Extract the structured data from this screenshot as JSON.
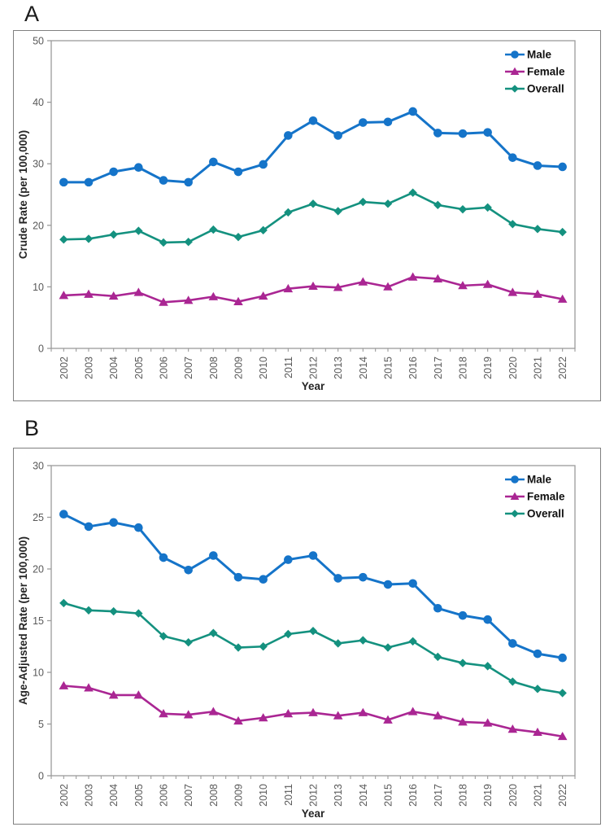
{
  "panels": [
    {
      "label": "A"
    },
    {
      "label": "B"
    }
  ],
  "colors": {
    "male": "#1574c9",
    "female": "#aa2693",
    "overall": "#14917f",
    "axis_line": "#9b9b9b",
    "tick_text": "#595959",
    "axis_title_text": "#262626",
    "legend_text": "#111111",
    "panel_border": "#808080"
  },
  "chart_data": [
    {
      "type": "line",
      "panel": "A",
      "title": "",
      "xlabel": "Year",
      "ylabel": "Crude Rate (per 100,000)",
      "ylim": [
        0,
        50
      ],
      "yticks": [
        0,
        10,
        20,
        30,
        40,
        50
      ],
      "grid": false,
      "legend_position": "top-right-inside",
      "legend": [
        "Male",
        "Female",
        "Overall"
      ],
      "categories": [
        "2002",
        "2003",
        "2004",
        "2005",
        "2006",
        "2007",
        "2008",
        "2009",
        "2010",
        "2011",
        "2012",
        "2013",
        "2014",
        "2015",
        "2016",
        "2017",
        "2018",
        "2019",
        "2020",
        "2021",
        "2022"
      ],
      "series": [
        {
          "name": "Male",
          "color": "#1574c9",
          "marker": "circle",
          "values": [
            27.0,
            27.0,
            28.7,
            29.4,
            27.3,
            27.0,
            30.3,
            28.7,
            29.9,
            34.6,
            37.0,
            34.6,
            36.7,
            36.8,
            38.5,
            35.0,
            34.9,
            35.1,
            31.0,
            29.7,
            29.5
          ]
        },
        {
          "name": "Female",
          "color": "#aa2693",
          "marker": "triangle",
          "values": [
            8.6,
            8.8,
            8.5,
            9.1,
            7.5,
            7.8,
            8.4,
            7.6,
            8.5,
            9.7,
            10.1,
            9.9,
            10.8,
            10.0,
            11.6,
            11.3,
            10.2,
            10.4,
            9.1,
            8.8,
            8.0
          ]
        },
        {
          "name": "Overall",
          "color": "#14917f",
          "marker": "diamond",
          "values": [
            17.7,
            17.8,
            18.5,
            19.1,
            17.2,
            17.3,
            19.3,
            18.1,
            19.2,
            22.1,
            23.5,
            22.3,
            23.8,
            23.5,
            25.3,
            23.3,
            22.6,
            22.9,
            20.2,
            19.4,
            18.9
          ]
        }
      ]
    },
    {
      "type": "line",
      "panel": "B",
      "title": "",
      "xlabel": "Year",
      "ylabel": "Age-Adjusted Rate (per 100,000)",
      "ylim": [
        0,
        30
      ],
      "yticks": [
        0,
        5,
        10,
        15,
        20,
        25,
        30
      ],
      "grid": false,
      "legend_position": "top-right-inside",
      "legend": [
        "Male",
        "Female",
        "Overall"
      ],
      "categories": [
        "2002",
        "2003",
        "2004",
        "2005",
        "2006",
        "2007",
        "2008",
        "2009",
        "2010",
        "2011",
        "2012",
        "2013",
        "2014",
        "2015",
        "2016",
        "2017",
        "2018",
        "2019",
        "2020",
        "2021",
        "2022"
      ],
      "series": [
        {
          "name": "Male",
          "color": "#1574c9",
          "marker": "circle",
          "values": [
            25.3,
            24.1,
            24.5,
            24.0,
            21.1,
            19.9,
            21.3,
            19.2,
            19.0,
            20.9,
            21.3,
            19.1,
            19.2,
            18.5,
            18.6,
            16.2,
            15.5,
            15.1,
            12.8,
            11.8,
            11.4
          ]
        },
        {
          "name": "Female",
          "color": "#aa2693",
          "marker": "triangle",
          "values": [
            8.7,
            8.5,
            7.8,
            7.8,
            6.0,
            5.9,
            6.2,
            5.3,
            5.6,
            6.0,
            6.1,
            5.8,
            6.1,
            5.4,
            6.2,
            5.8,
            5.2,
            5.1,
            4.5,
            4.2,
            3.8
          ]
        },
        {
          "name": "Overall",
          "color": "#14917f",
          "marker": "diamond",
          "values": [
            16.7,
            16.0,
            15.9,
            15.7,
            13.5,
            12.9,
            13.8,
            12.4,
            12.5,
            13.7,
            14.0,
            12.8,
            13.1,
            12.4,
            13.0,
            11.5,
            10.9,
            10.6,
            9.1,
            8.4,
            8.0
          ]
        }
      ]
    }
  ]
}
